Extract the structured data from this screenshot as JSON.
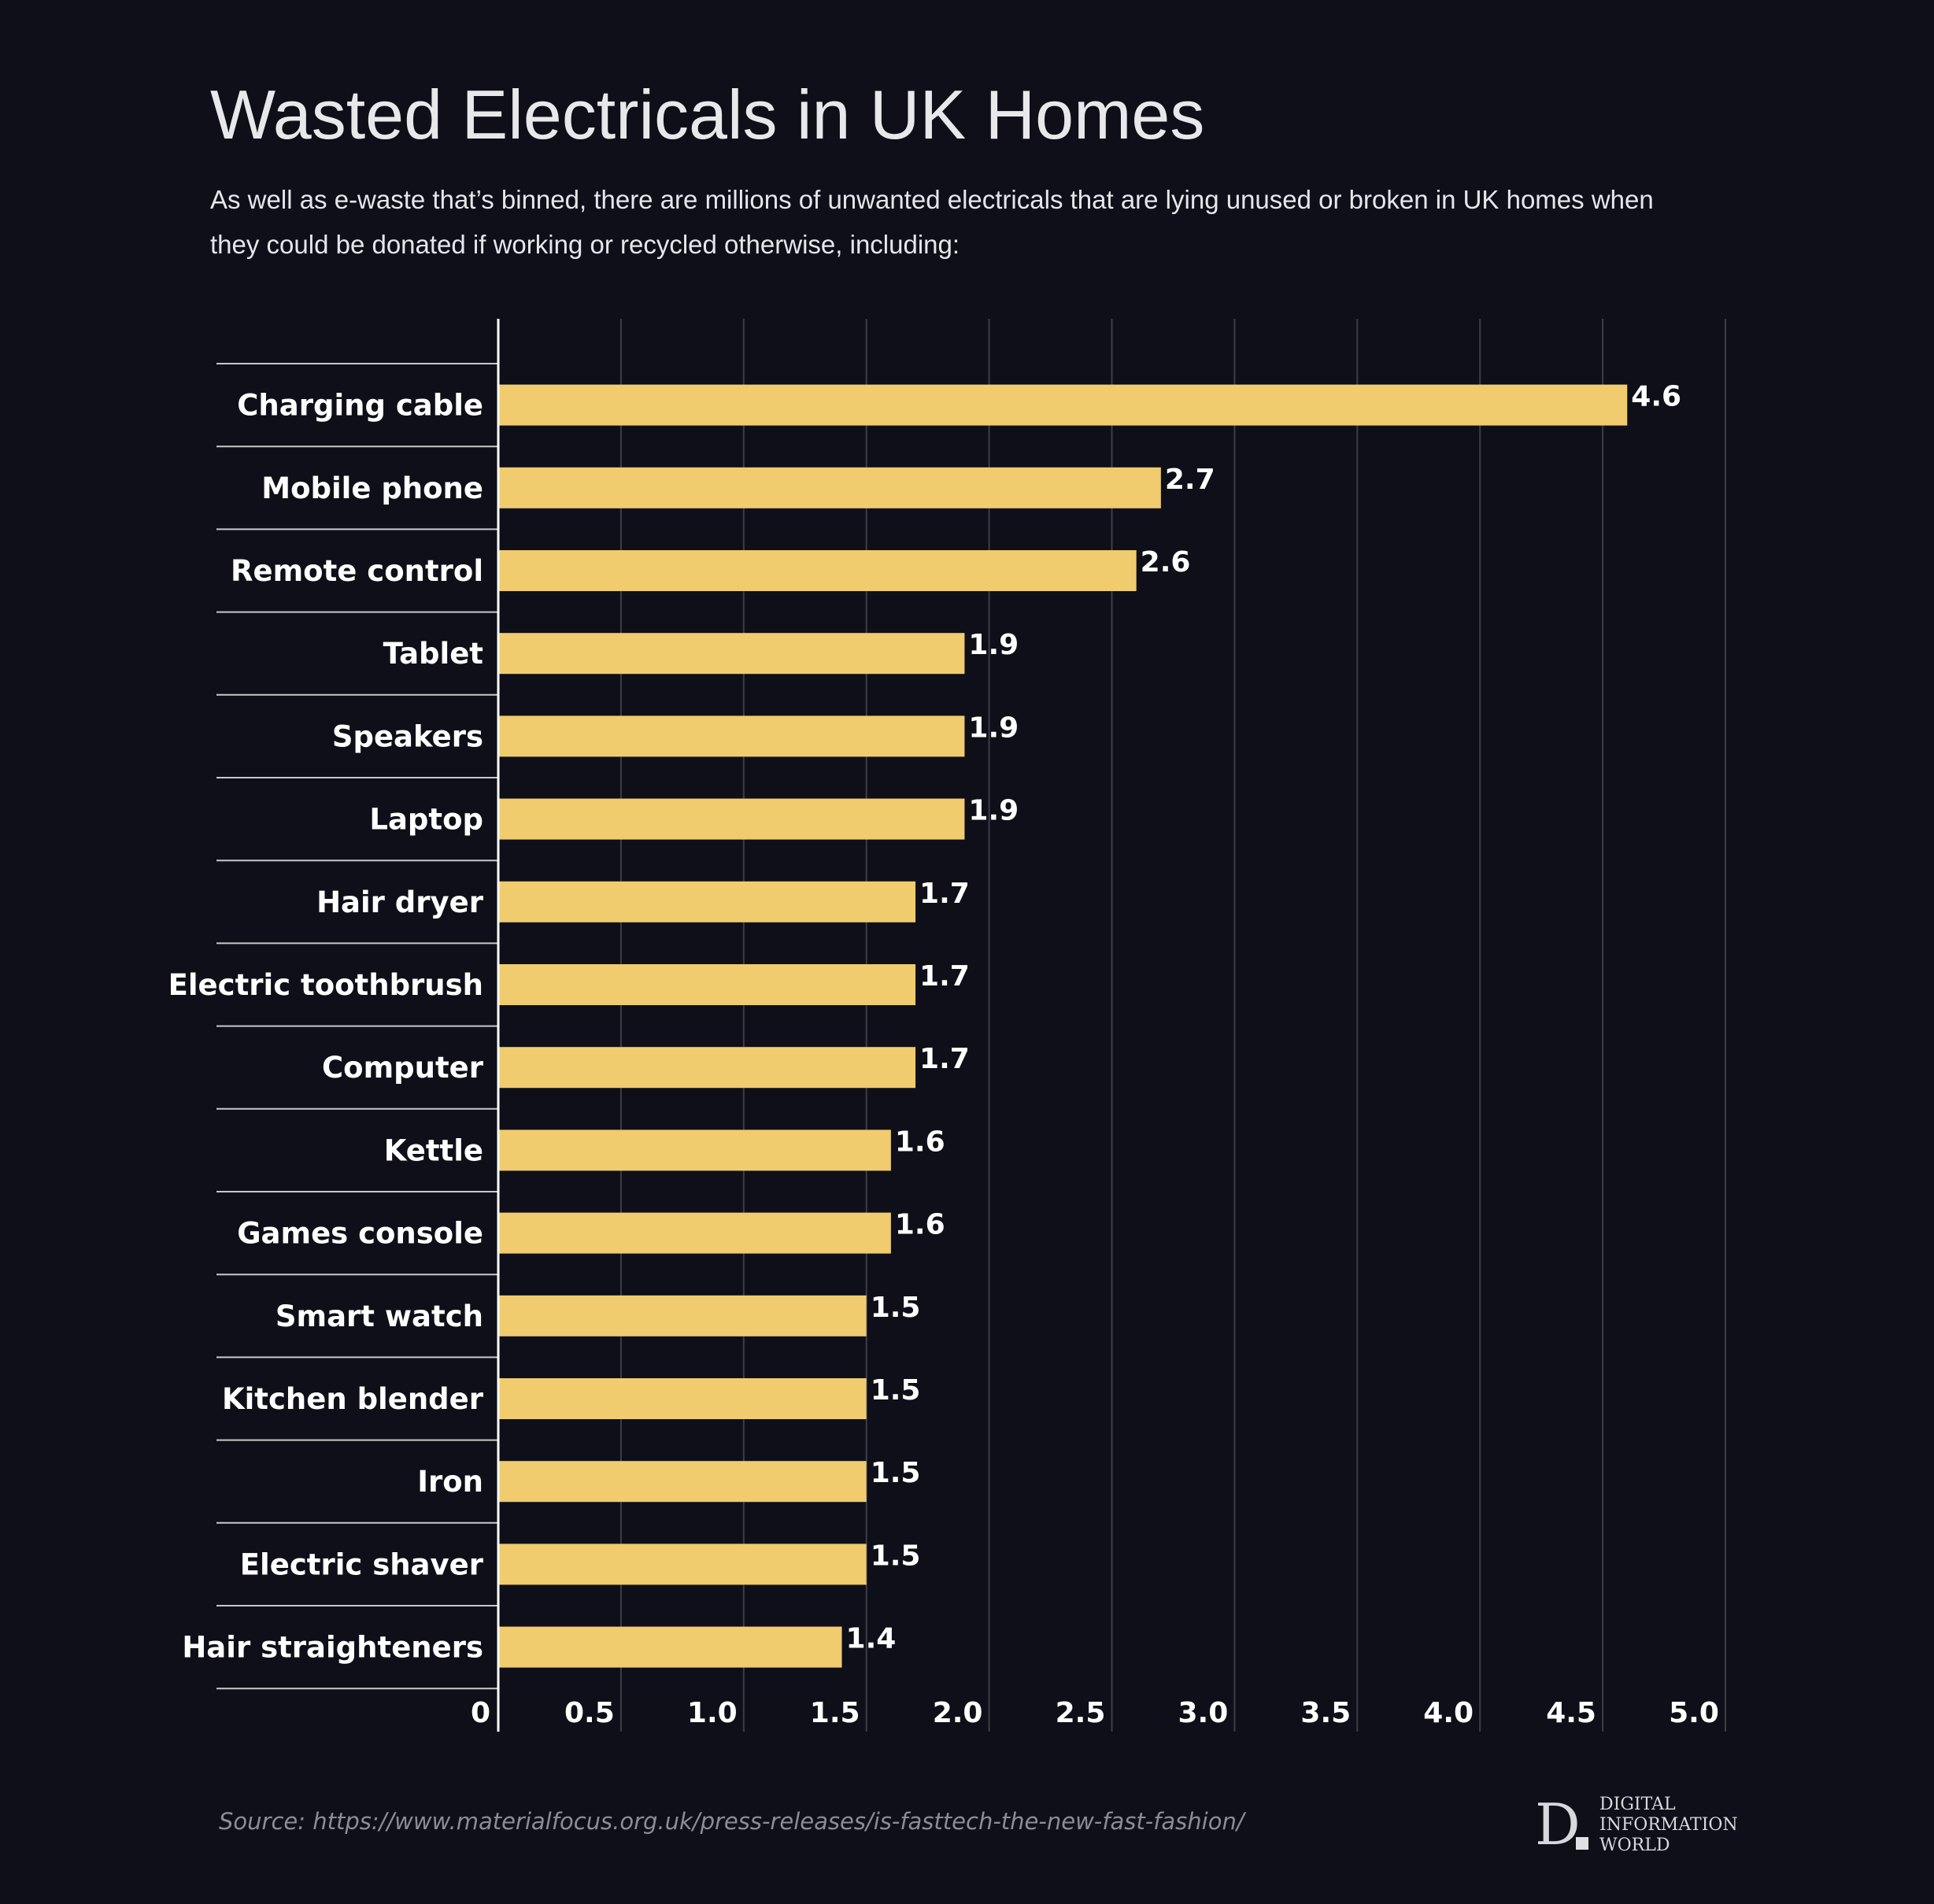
{
  "chart_data": {
    "type": "bar",
    "orientation": "horizontal",
    "title": "Wasted Electricals in UK Homes",
    "subtitle": "As well as e-waste that’s binned, there are millions of unwanted electricals that are lying unused or broken in UK homes when they could be donated if working or recycled otherwise, including:",
    "categories": [
      "Charging cable",
      "Mobile phone",
      "Remote control",
      "Tablet",
      "Speakers",
      "Laptop",
      "Hair dryer",
      "Electric toothbrush",
      "Computer",
      "Kettle",
      "Games console",
      "Smart watch",
      "Kitchen blender",
      "Iron",
      "Electric shaver",
      "Hair straighteners"
    ],
    "values": [
      4.6,
      2.7,
      2.6,
      1.9,
      1.9,
      1.9,
      1.7,
      1.7,
      1.7,
      1.6,
      1.6,
      1.5,
      1.5,
      1.5,
      1.5,
      1.4
    ],
    "value_labels": [
      "4.6",
      "2.7",
      "2.6",
      "1.9",
      "1.9",
      "1.9",
      "1.7",
      "1.7",
      "1.7",
      "1.6",
      "1.6",
      "1.5",
      "1.5",
      "1.5",
      "1.5",
      "1.4"
    ],
    "xlim": [
      0,
      5.0
    ],
    "xticks": [
      0,
      0.5,
      1.0,
      1.5,
      2.0,
      2.5,
      3.0,
      3.5,
      4.0,
      4.5,
      5.0
    ],
    "xtick_labels": [
      "0",
      "0.5",
      "1.0",
      "1.5",
      "2.0",
      "2.5",
      "3.0",
      "3.5",
      "4.0",
      "4.5",
      "5.0"
    ],
    "xlabel": "",
    "ylabel": "",
    "grid": true,
    "bar_color": "#f0cc6e",
    "gridline_color": "#3d3d48",
    "separator_color": "#c8c8cc"
  },
  "source": "Source: https://www.materialfocus.org.uk/press-releases/is-fasttech-the-new-fast-fashion/",
  "logo": {
    "letter": "D",
    "lines": [
      "DIGITAL",
      "INFORMATION",
      "WORLD"
    ]
  }
}
